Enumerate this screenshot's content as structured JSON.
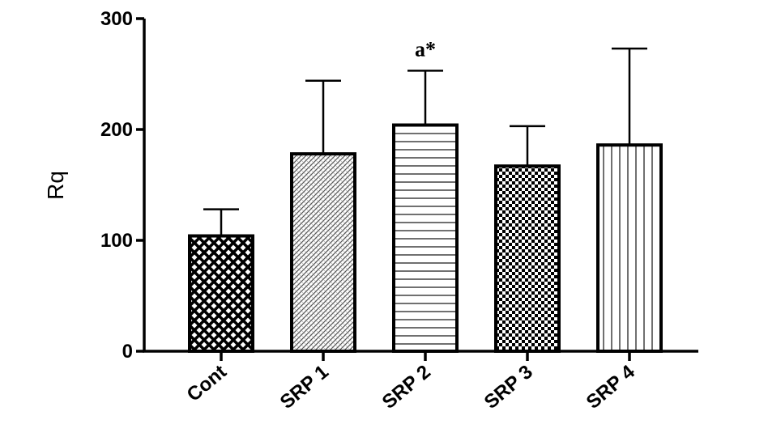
{
  "chart_data": {
    "type": "bar",
    "categories": [
      "Cont",
      "SRP 1",
      "SRP 2",
      "SRP 3",
      "SRP 4"
    ],
    "values": [
      104,
      178,
      204,
      167,
      186
    ],
    "error_upper": [
      128,
      244,
      253,
      203,
      273
    ],
    "patterns": [
      "diamond-crosshatch",
      "diagonal-fine",
      "horizontal-lines",
      "checkerboard",
      "vertical-lines"
    ],
    "annotations": [
      {
        "category": "SRP 2",
        "text": "a*"
      }
    ],
    "xlabel": "",
    "ylabel": "Rq",
    "ylim": [
      0,
      300
    ],
    "yticks": [
      0,
      100,
      200,
      300
    ],
    "grid": false,
    "legend": "none",
    "colors": {
      "bar_stroke": "#000000",
      "background": "#ffffff"
    }
  }
}
